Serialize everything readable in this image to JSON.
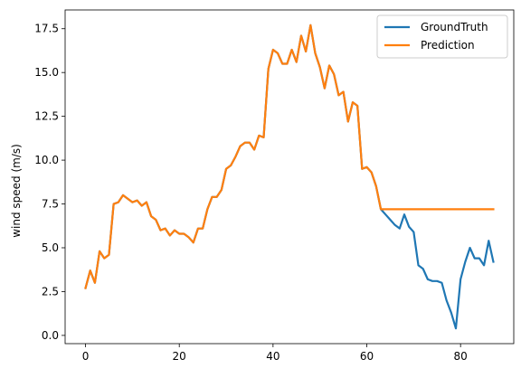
{
  "chart_data": {
    "type": "line",
    "title": "",
    "xlabel": "",
    "ylabel": "wind speed (m/s)",
    "xlim": [
      -4.35,
      91.35
    ],
    "ylim": [
      -0.47,
      18.57
    ],
    "xticks": [
      0,
      20,
      40,
      60,
      80
    ],
    "yticks": [
      0.0,
      2.5,
      5.0,
      7.5,
      10.0,
      12.5,
      15.0,
      17.5
    ],
    "ytick_labels": [
      "0.0",
      "2.5",
      "5.0",
      "7.5",
      "10.0",
      "12.5",
      "15.0",
      "17.5"
    ],
    "grid": false,
    "legend_position": "top-right",
    "x": [
      0,
      1,
      2,
      3,
      4,
      5,
      6,
      7,
      8,
      9,
      10,
      11,
      12,
      13,
      14,
      15,
      16,
      17,
      18,
      19,
      20,
      21,
      22,
      23,
      24,
      25,
      26,
      27,
      28,
      29,
      30,
      31,
      32,
      33,
      34,
      35,
      36,
      37,
      38,
      39,
      40,
      41,
      42,
      43,
      44,
      45,
      46,
      47,
      48,
      49,
      50,
      51,
      52,
      53,
      54,
      55,
      56,
      57,
      58,
      59,
      60,
      61,
      62,
      63,
      64,
      65,
      66,
      67,
      68,
      69,
      70,
      71,
      72,
      73,
      74,
      75,
      76,
      77,
      78,
      79,
      80,
      81,
      82,
      83,
      84,
      85,
      86,
      87
    ],
    "series": [
      {
        "name": "GroundTruth",
        "color": "#1f77b4",
        "values": [
          2.7,
          3.7,
          3.0,
          4.8,
          4.4,
          4.6,
          7.5,
          7.6,
          8.0,
          7.8,
          7.6,
          7.7,
          7.4,
          7.6,
          6.8,
          6.6,
          6.0,
          6.1,
          5.7,
          6.0,
          5.8,
          5.8,
          5.6,
          5.3,
          6.1,
          6.1,
          7.2,
          7.9,
          7.9,
          8.3,
          9.5,
          9.7,
          10.2,
          10.8,
          11.0,
          11.0,
          10.6,
          11.4,
          11.3,
          15.2,
          16.3,
          16.1,
          15.5,
          15.5,
          16.3,
          15.6,
          17.1,
          16.2,
          17.7,
          16.1,
          15.3,
          14.1,
          15.4,
          14.9,
          13.7,
          13.9,
          12.2,
          13.3,
          13.1,
          9.5,
          9.6,
          9.3,
          8.5,
          7.2,
          6.9,
          6.6,
          6.3,
          6.1,
          6.9,
          6.2,
          5.9,
          4.0,
          3.8,
          3.2,
          3.1,
          3.1,
          3.0,
          2.0,
          1.3,
          0.4,
          3.2,
          4.2,
          5.0,
          4.4,
          4.4,
          4.0,
          5.4,
          4.2
        ]
      },
      {
        "name": "Prediction",
        "color": "#ff7f0e",
        "values": [
          2.7,
          3.7,
          3.0,
          4.8,
          4.4,
          4.6,
          7.5,
          7.6,
          8.0,
          7.8,
          7.6,
          7.7,
          7.4,
          7.6,
          6.8,
          6.6,
          6.0,
          6.1,
          5.7,
          6.0,
          5.8,
          5.8,
          5.6,
          5.3,
          6.1,
          6.1,
          7.2,
          7.9,
          7.9,
          8.3,
          9.5,
          9.7,
          10.2,
          10.8,
          11.0,
          11.0,
          10.6,
          11.4,
          11.3,
          15.2,
          16.3,
          16.1,
          15.5,
          15.5,
          16.3,
          15.6,
          17.1,
          16.2,
          17.7,
          16.1,
          15.3,
          14.1,
          15.4,
          14.9,
          13.7,
          13.9,
          12.2,
          13.3,
          13.1,
          9.5,
          9.6,
          9.3,
          8.5,
          7.2,
          7.2,
          7.2,
          7.2,
          7.2,
          7.2,
          7.2,
          7.2,
          7.2,
          7.2,
          7.2,
          7.2,
          7.2,
          7.2,
          7.2,
          7.2,
          7.2,
          7.2,
          7.2,
          7.2,
          7.2,
          7.2,
          7.2,
          7.2,
          7.2
        ]
      }
    ]
  }
}
